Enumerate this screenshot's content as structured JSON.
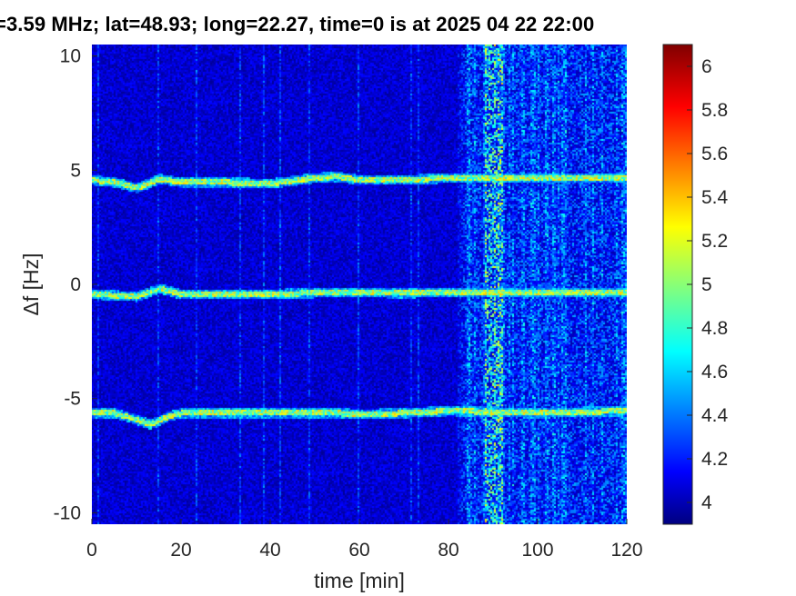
{
  "chart_data": {
    "type": "heatmap",
    "title": "=3.59 MHz;  lat=48.93; long=22.27, time=0 is at 2025 04 22 22:00",
    "xlabel": "time [min]",
    "ylabel": "Δf [Hz]",
    "xlim": [
      0,
      120
    ],
    "ylim": [
      -10.5,
      10.5
    ],
    "xticks": [
      0,
      20,
      40,
      60,
      80,
      100,
      120
    ],
    "yticks": [
      -10,
      -5,
      0,
      5,
      10
    ],
    "colorbar": {
      "range": [
        3.9,
        6.1
      ],
      "ticks": [
        4,
        4.2,
        4.4,
        4.6,
        4.8,
        5,
        5.2,
        5.4,
        5.6,
        5.8,
        6
      ],
      "colormap": "jet"
    },
    "noise_band": {
      "time_range": [
        82,
        120
      ],
      "peak_time_range": [
        88,
        92
      ]
    },
    "series": [
      {
        "points": [
          [
            0,
            4.6
          ],
          [
            5,
            4.5
          ],
          [
            10,
            4.25
          ],
          [
            15,
            4.65
          ],
          [
            20,
            4.5
          ],
          [
            30,
            4.5
          ],
          [
            40,
            4.45
          ],
          [
            50,
            4.7
          ],
          [
            55,
            4.75
          ],
          [
            60,
            4.6
          ],
          [
            70,
            4.6
          ],
          [
            80,
            4.7
          ],
          [
            90,
            4.7
          ],
          [
            100,
            4.7
          ],
          [
            120,
            4.7
          ]
        ]
      },
      {
        "points": [
          [
            0,
            -0.4
          ],
          [
            10,
            -0.5
          ],
          [
            15,
            -0.15
          ],
          [
            20,
            -0.4
          ],
          [
            30,
            -0.4
          ],
          [
            40,
            -0.4
          ],
          [
            55,
            -0.3
          ],
          [
            70,
            -0.35
          ],
          [
            80,
            -0.3
          ],
          [
            100,
            -0.3
          ],
          [
            120,
            -0.3
          ]
        ]
      },
      {
        "points": [
          [
            0,
            -5.6
          ],
          [
            5,
            -5.6
          ],
          [
            10,
            -5.9
          ],
          [
            13,
            -6.1
          ],
          [
            17,
            -5.75
          ],
          [
            20,
            -5.6
          ],
          [
            30,
            -5.6
          ],
          [
            40,
            -5.6
          ],
          [
            55,
            -5.6
          ],
          [
            60,
            -5.65
          ],
          [
            70,
            -5.6
          ],
          [
            80,
            -5.5
          ],
          [
            100,
            -5.6
          ],
          [
            120,
            -5.5
          ]
        ]
      }
    ]
  }
}
